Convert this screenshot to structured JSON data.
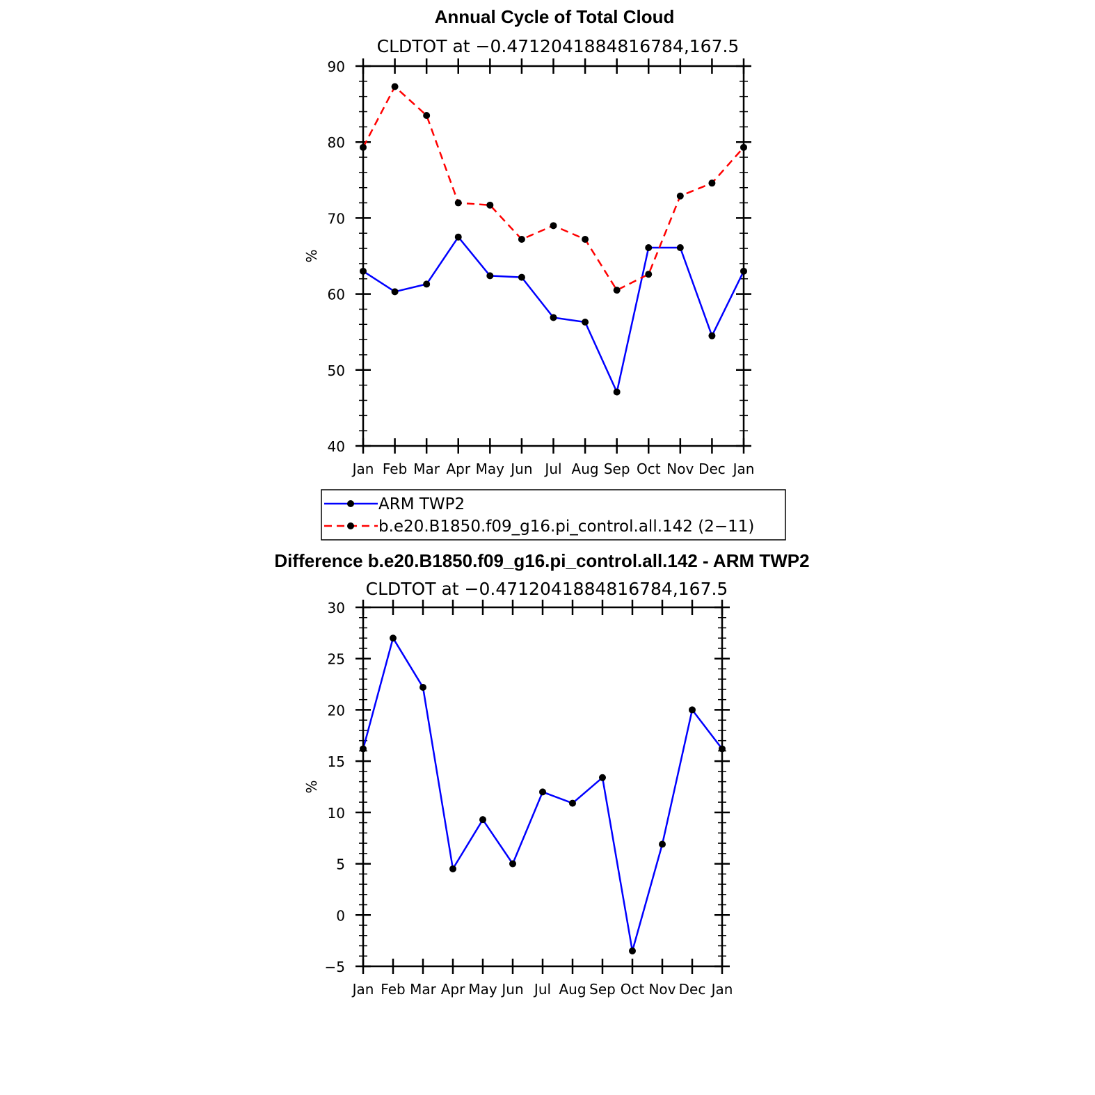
{
  "chart_data": [
    {
      "type": "line",
      "title": "Annual Cycle of Total Cloud",
      "subtitle": "CLDTOT at −0.4712041884816784,167.5",
      "ylabel": "%",
      "xlabel": "",
      "ylim": [
        40,
        90
      ],
      "yticks": [
        "90",
        "80",
        "70",
        "60",
        "50",
        "40"
      ],
      "categories": [
        "Jan",
        "Feb",
        "Mar",
        "Apr",
        "May",
        "Jun",
        "Jul",
        "Aug",
        "Sep",
        "Oct",
        "Nov",
        "Dec",
        "Jan"
      ],
      "grid": false,
      "legend_placement": "bottom",
      "series": [
        {
          "name": "ARM TWP2",
          "color": "#0000ff",
          "dash": "solid",
          "values": [
            63.0,
            60.3,
            61.3,
            67.5,
            62.4,
            62.2,
            56.9,
            56.3,
            47.1,
            66.1,
            66.1,
            54.5,
            63.0
          ]
        },
        {
          "name": "b.e20.B1850.f09_g16.pi_control.all.142 (2−11)",
          "color": "#ff0000",
          "dash": "dashed",
          "values": [
            79.3,
            87.3,
            83.5,
            72.0,
            71.7,
            67.2,
            69.0,
            67.2,
            60.5,
            62.6,
            72.9,
            74.6,
            79.3
          ]
        }
      ]
    },
    {
      "type": "line",
      "title": "Difference b.e20.B1850.f09_g16.pi_control.all.142 - ARM TWP2",
      "subtitle": "CLDTOT at −0.4712041884816784,167.5",
      "ylabel": "%",
      "xlabel": "",
      "ylim": [
        -5,
        30
      ],
      "yticks": [
        "30",
        "25",
        "20",
        "15",
        "10",
        "5",
        "0",
        "−5"
      ],
      "categories": [
        "Jan",
        "Feb",
        "Mar",
        "Apr",
        "May",
        "Jun",
        "Jul",
        "Aug",
        "Sep",
        "Oct",
        "Nov",
        "Dec",
        "Jan"
      ],
      "grid": false,
      "series": [
        {
          "color": "#0000ff",
          "dash": "solid",
          "values": [
            16.2,
            27.0,
            22.2,
            4.5,
            9.3,
            5.0,
            12.0,
            10.9,
            13.4,
            -3.5,
            6.9,
            20.0,
            16.2
          ]
        }
      ]
    }
  ]
}
